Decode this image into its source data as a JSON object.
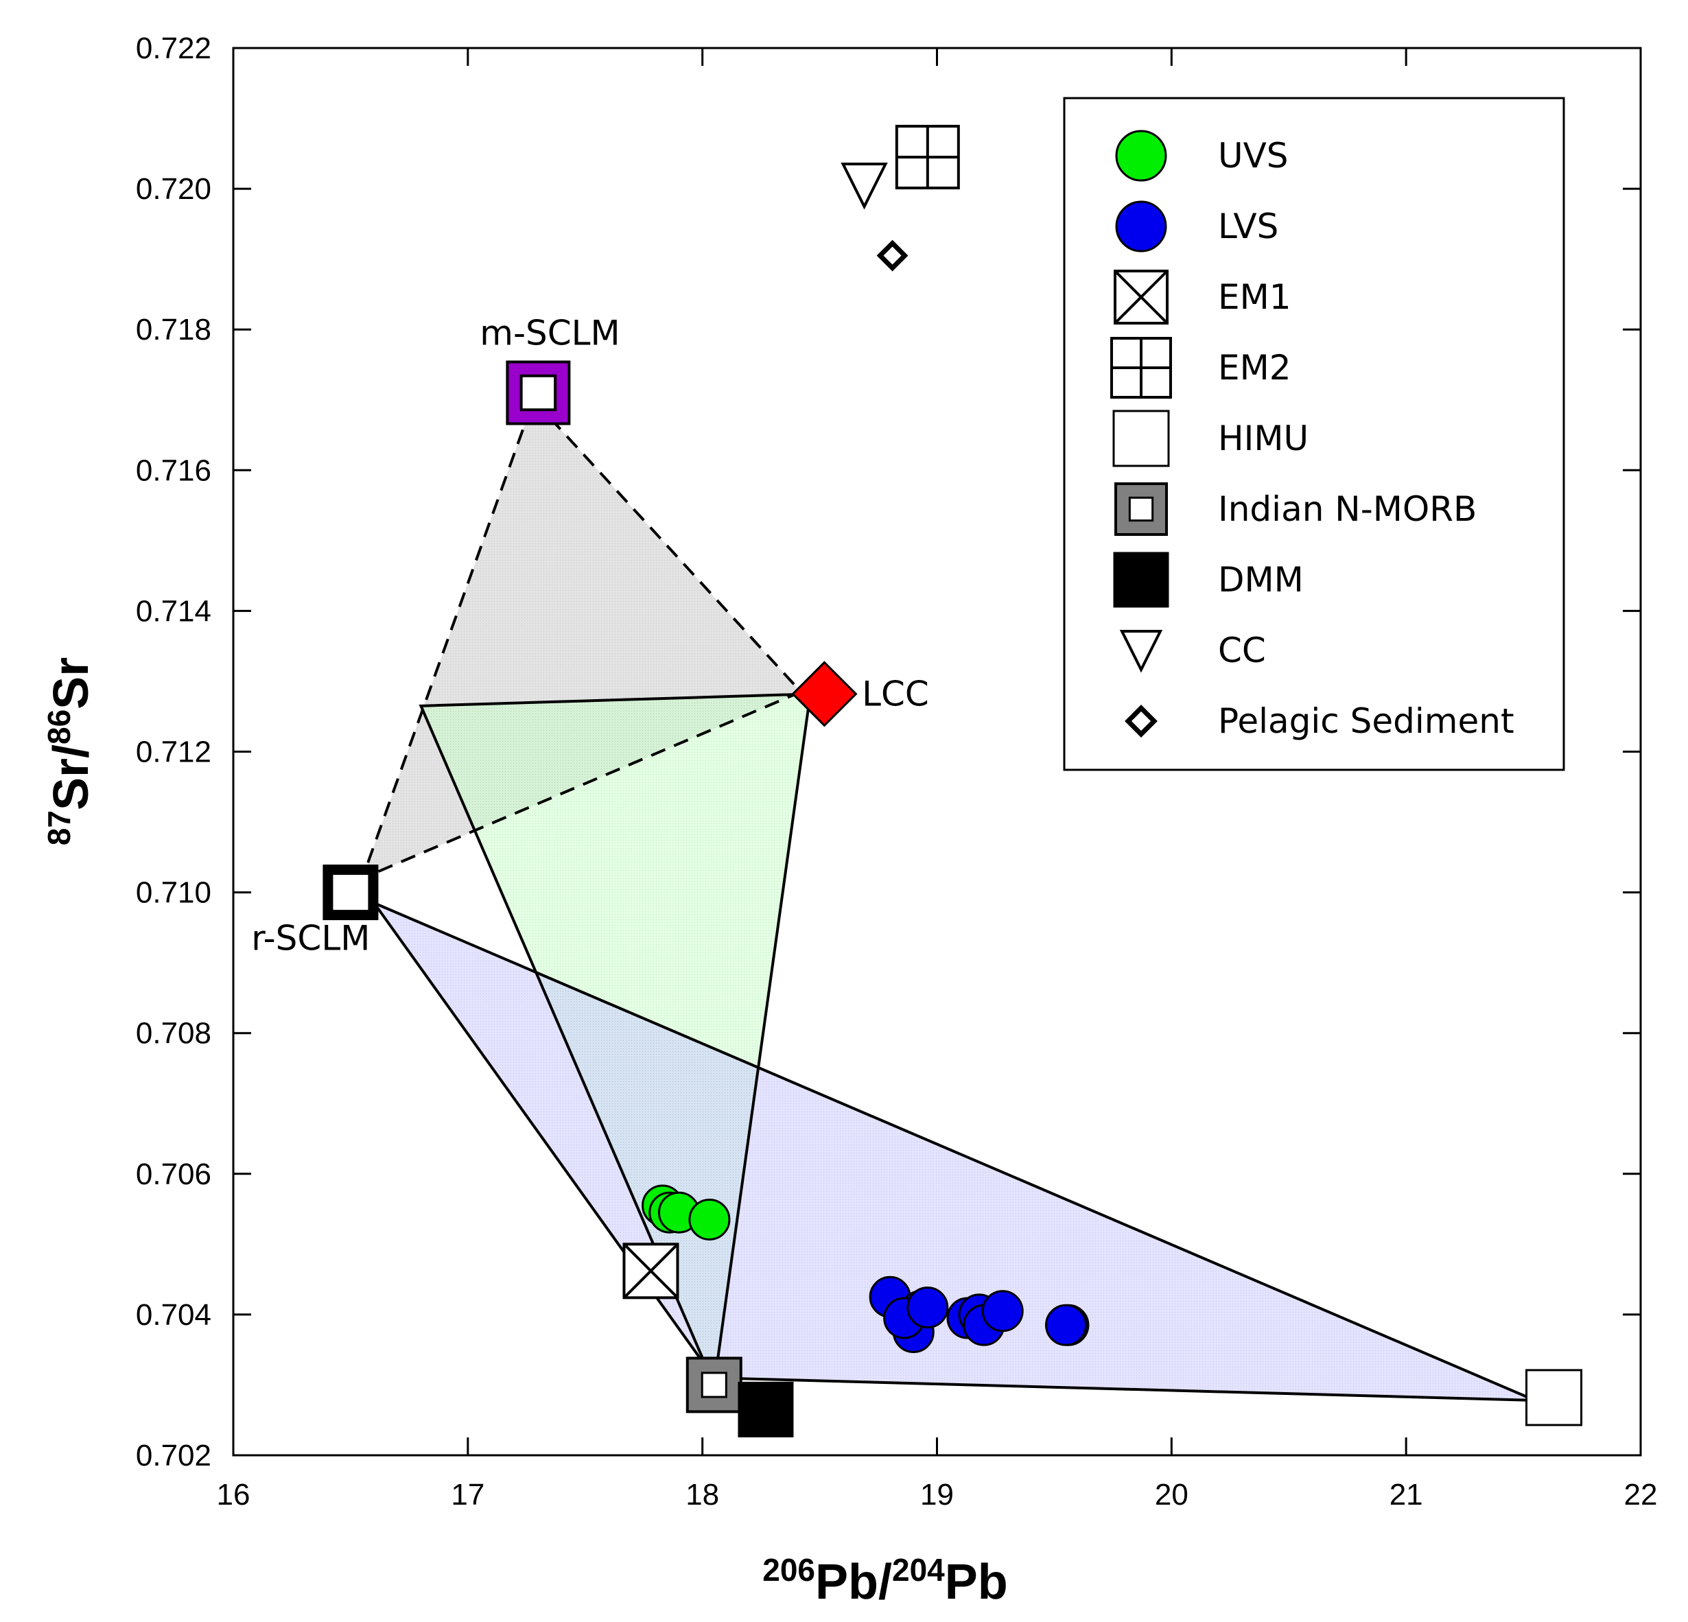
{
  "chart_data": {
    "type": "scatter",
    "title": "",
    "xlabel": {
      "sup1": "206",
      "base1": "Pb/",
      "sup2": "204",
      "base2": "Pb"
    },
    "ylabel": {
      "sup1": "87",
      "base1": "Sr/",
      "sup2": "86",
      "base2": "Sr"
    },
    "xlim": [
      16,
      22
    ],
    "ylim": [
      0.702,
      0.722
    ],
    "xticks": [
      16,
      17,
      18,
      19,
      20,
      21,
      22
    ],
    "xtick_labels": [
      "16",
      "17",
      "18",
      "19",
      "20",
      "21",
      "22"
    ],
    "yticks": [
      0.702,
      0.704,
      0.706,
      0.708,
      0.71,
      0.712,
      0.714,
      0.716,
      0.718,
      0.72,
      0.722
    ],
    "ytick_labels": [
      "0.702",
      "0.704",
      "0.706",
      "0.708",
      "0.710",
      "0.712",
      "0.714",
      "0.716",
      "0.718",
      "0.720",
      "0.722"
    ],
    "grid": false,
    "legend_position": "top-right",
    "series": [
      {
        "name": "UVS",
        "marker": "circle",
        "color": "#00ee00",
        "x": [
          17.83,
          17.86,
          17.9,
          18.03
        ],
        "y": [
          0.70555,
          0.70545,
          0.70545,
          0.70535
        ]
      },
      {
        "name": "LVS",
        "marker": "circle",
        "color": "#0000ee",
        "x": [
          18.8,
          18.93,
          18.9,
          18.86,
          18.96,
          19.13,
          19.18,
          19.2,
          19.28,
          19.56,
          19.55
        ],
        "y": [
          0.70425,
          0.70405,
          0.70375,
          0.70395,
          0.7041,
          0.70395,
          0.704,
          0.70385,
          0.70405,
          0.70385,
          0.70385
        ]
      },
      {
        "name": "EM1",
        "marker": "crossed-square",
        "color": "#ffffff",
        "x": [
          17.78
        ],
        "y": [
          0.70462
        ]
      },
      {
        "name": "EM2",
        "marker": "plus-square",
        "color": "#ffffff",
        "x": [
          18.96
        ],
        "y": [
          0.72045
        ]
      },
      {
        "name": "HIMU",
        "marker": "square",
        "color": "#ffffff",
        "x": [
          21.63
        ],
        "y": [
          0.70282
        ]
      },
      {
        "name": "Indian N-MORB",
        "marker": "gray-square",
        "color": "#808080",
        "x": [
          18.05
        ],
        "y": [
          0.703
        ]
      },
      {
        "name": "DMM",
        "marker": "filled-square",
        "color": "#000000",
        "x": [
          18.27
        ],
        "y": [
          0.70265
        ]
      },
      {
        "name": "CC",
        "marker": "triangle-down",
        "color": "#ffffff",
        "x": [
          18.69
        ],
        "y": [
          0.72005
        ]
      },
      {
        "name": "Pelagic Sediment",
        "marker": "diamond",
        "color": "#ffffff",
        "x": [
          18.81
        ],
        "y": [
          0.71905
        ]
      }
    ],
    "end_members": [
      {
        "name": "m-SCLM",
        "label": "m-SCLM",
        "marker": "purple-square",
        "color": "#9900cc",
        "x": [
          17.3
        ],
        "y": [
          0.7171
        ]
      },
      {
        "name": "r-SCLM",
        "label": "r-SCLM",
        "marker": "thick-square",
        "color": "#ffffff",
        "x": [
          16.5
        ],
        "y": [
          0.71
        ]
      },
      {
        "name": "LCC",
        "label": "LCC",
        "marker": "diamond",
        "color": "#ff0000",
        "x": [
          18.52
        ],
        "y": [
          0.71282
        ]
      }
    ],
    "mixing_fields": [
      {
        "name": "gray field",
        "color": "#cccccc",
        "edge": "dashed",
        "x": [
          17.28,
          18.42,
          16.55
        ],
        "y": [
          0.717,
          0.71285,
          0.7102
        ]
      },
      {
        "name": "green field",
        "color": "#ccffcc",
        "edge": "solid",
        "x": [
          16.8,
          18.46,
          18.05
        ],
        "y": [
          0.71265,
          0.71282,
          0.703
        ]
      },
      {
        "name": "blue field",
        "color": "#ccccff",
        "edge": "solid",
        "x": [
          16.6,
          18.05,
          21.55
        ],
        "y": [
          0.70985,
          0.7031,
          0.70278
        ]
      }
    ],
    "legend": [
      "UVS",
      "LVS",
      "EM1",
      "EM2",
      "HIMU",
      "Indian N-MORB",
      "DMM",
      "CC",
      "Pelagic Sediment"
    ],
    "annotations": [
      {
        "text": "m-SCLM",
        "x": 17.35,
        "y": 0.71795
      },
      {
        "text": "LCC",
        "x": 18.68,
        "y": 0.71282
      },
      {
        "text": "r-SCLM",
        "x": 16.33,
        "y": 0.70935
      }
    ]
  }
}
